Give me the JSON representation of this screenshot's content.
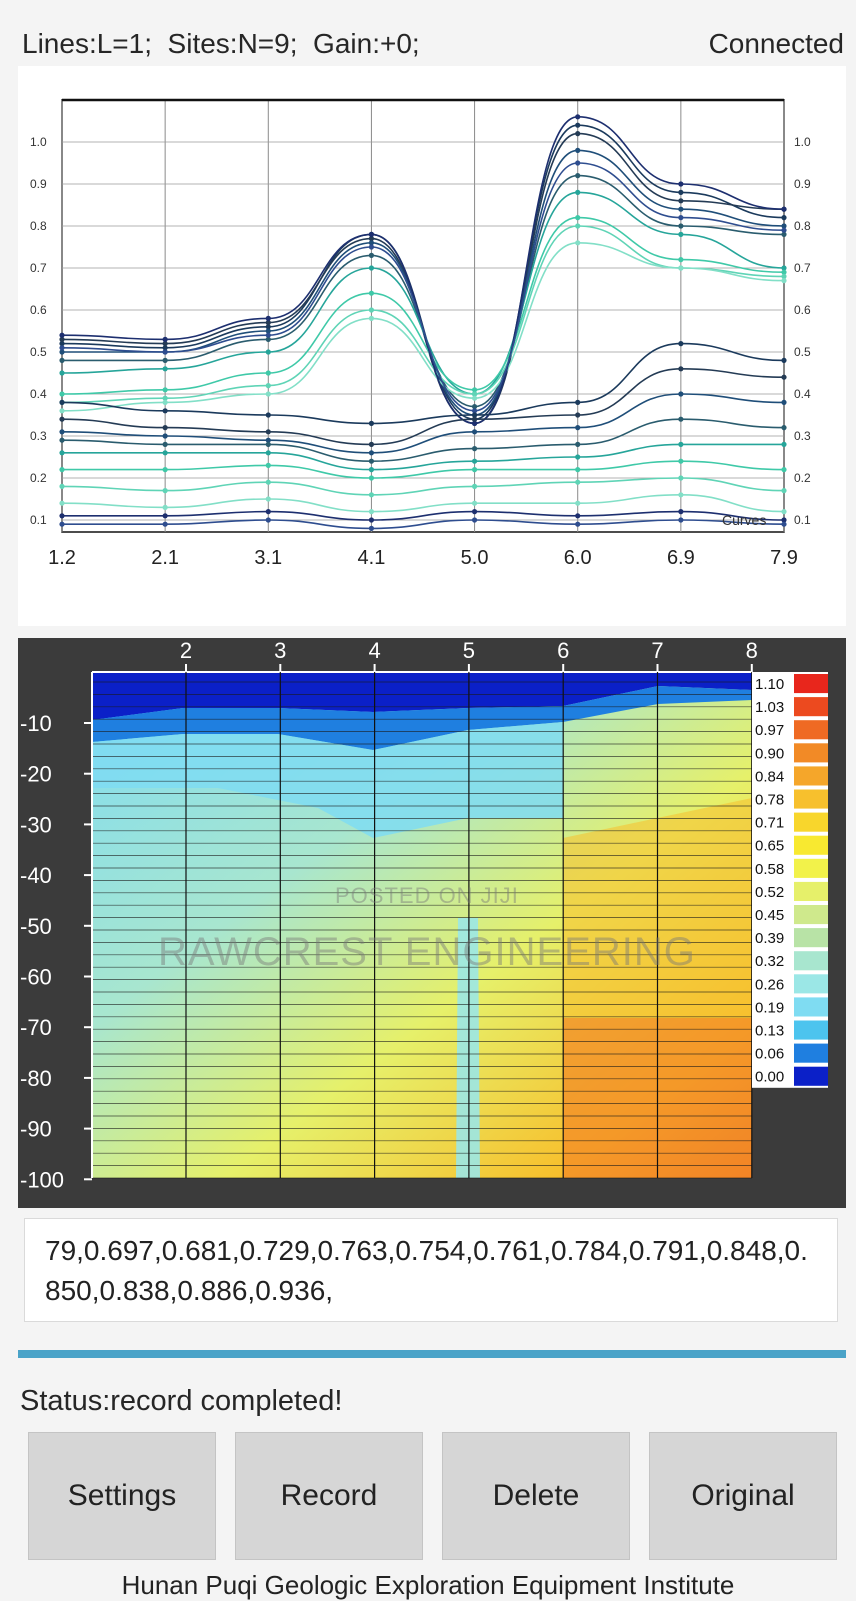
{
  "header": {
    "info": "Lines:L=1;  Sites:N=9;  Gain:+0;",
    "connection": "Connected"
  },
  "curve_chart": {
    "x_ticks": [
      "1.2",
      "2.1",
      "3.1",
      "4.1",
      "5.0",
      "6.0",
      "6.9",
      "7.9"
    ],
    "y_ticks": [
      "0.1",
      "0.2",
      "0.3",
      "0.4",
      "0.5",
      "0.6",
      "0.7",
      "0.8",
      "0.9",
      "1.0"
    ],
    "legend_label": "Curves"
  },
  "section_chart": {
    "x_ticks": [
      "2",
      "3",
      "4",
      "5",
      "6",
      "7",
      "8"
    ],
    "y_ticks": [
      "-10",
      "-20",
      "-30",
      "-40",
      "-50",
      "-60",
      "-70",
      "-80",
      "-90",
      "-100"
    ],
    "color_scale": [
      {
        "label": "1.10",
        "color": "#e8261c"
      },
      {
        "label": "1.03",
        "color": "#ec4a1f"
      },
      {
        "label": "0.97",
        "color": "#ef6a23"
      },
      {
        "label": "0.90",
        "color": "#f28a26"
      },
      {
        "label": "0.84",
        "color": "#f5a62a"
      },
      {
        "label": "0.78",
        "color": "#f7c02d"
      },
      {
        "label": "0.71",
        "color": "#f8d62c"
      },
      {
        "label": "0.65",
        "color": "#f8e930"
      },
      {
        "label": "0.58",
        "color": "#f2f24a"
      },
      {
        "label": "0.52",
        "color": "#e6f06a"
      },
      {
        "label": "0.45",
        "color": "#cfe98c"
      },
      {
        "label": "0.39",
        "color": "#b8e3a6"
      },
      {
        "label": "0.32",
        "color": "#a8e6cf"
      },
      {
        "label": "0.26",
        "color": "#9be7e6"
      },
      {
        "label": "0.19",
        "color": "#7fdcf2"
      },
      {
        "label": "0.13",
        "color": "#4cc4ee"
      },
      {
        "label": "0.06",
        "color": "#1f7fe0"
      },
      {
        "label": "0.00",
        "color": "#0b20c8"
      }
    ]
  },
  "watermark": {
    "line1": "POSTED ON JIJI",
    "line2": "RAWCREST ENGINEERING"
  },
  "data_text": "79,0.697,0.681,0.729,0.763,0.754,0.761,0.784,0.791,0.848,0.850,0.838,0.886,0.936,",
  "status": "Status:record completed!",
  "buttons": {
    "settings": "Settings",
    "record": "Record",
    "delete": "Delete",
    "original": "Original"
  },
  "footer": "Hunan Puqi Geologic Exploration Equipment Institute"
}
